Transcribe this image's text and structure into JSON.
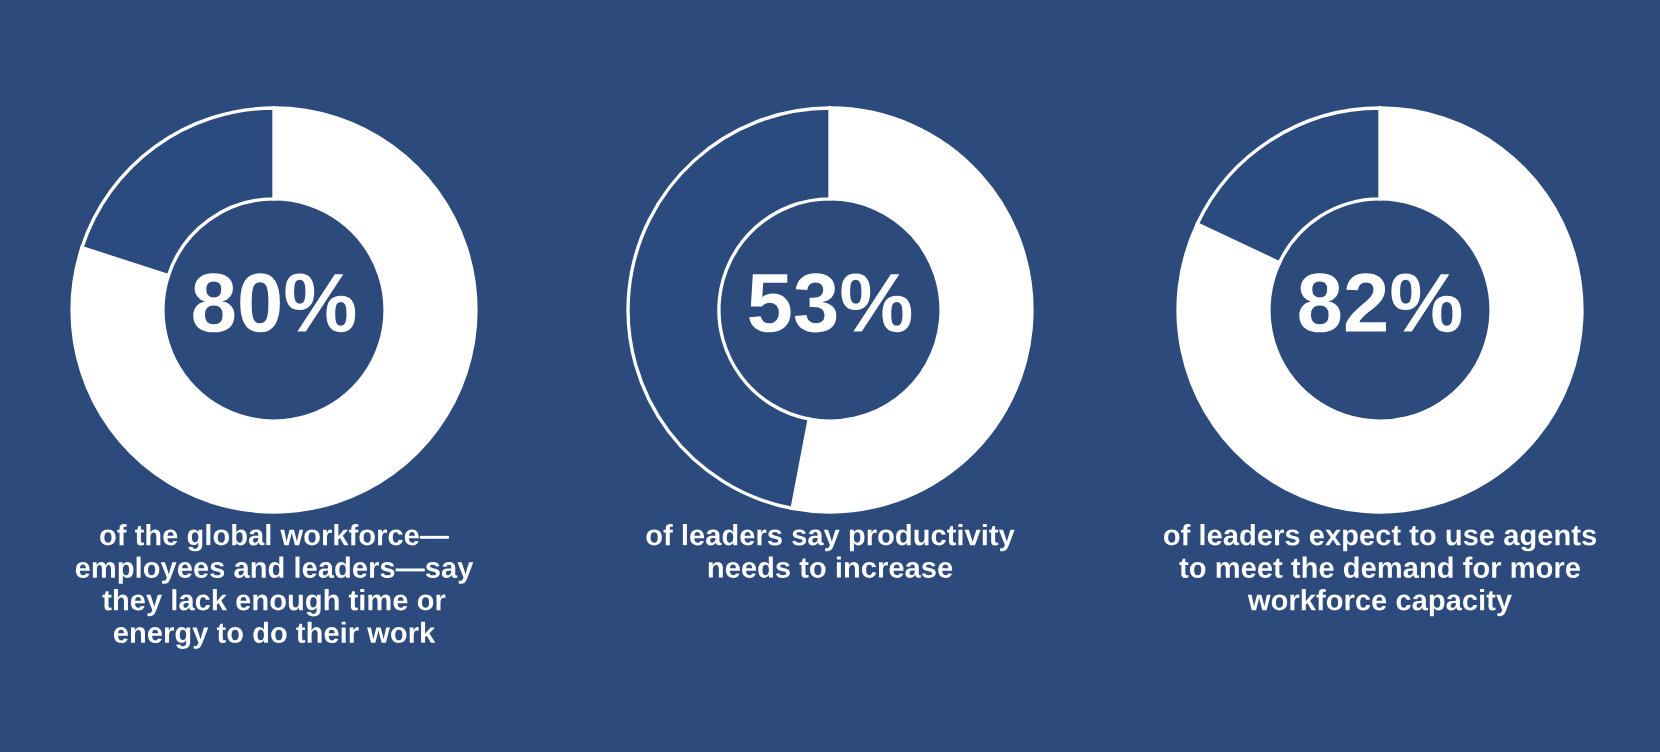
{
  "chart_data": [
    {
      "type": "donut",
      "categories": [
        null,
        null
      ],
      "values": [
        80,
        20
      ],
      "colors": [
        "#ffffff",
        "#2b4a7d"
      ],
      "value_labels": [
        "80%",
        null
      ],
      "annotations": [
        "of the global workforce—\nemployees and leaders—say\nthey lack enough time or\nenergy to do their work"
      ]
    },
    {
      "type": "donut",
      "categories": [
        null,
        null
      ],
      "values": [
        53,
        47
      ],
      "colors": [
        "#ffffff",
        "#2b4a7d"
      ],
      "value_labels": [
        "53%",
        null
      ],
      "annotations": [
        "of leaders say productivity\nneeds to increase"
      ]
    },
    {
      "type": "donut",
      "categories": [
        null,
        null
      ],
      "values": [
        82,
        18
      ],
      "colors": [
        "#ffffff",
        "#2b4a7d"
      ],
      "value_labels": [
        "82%",
        null
      ],
      "annotations": [
        "of leaders expect to use agents\nto meet the demand for more\nworkforce capacity"
      ]
    }
  ]
}
